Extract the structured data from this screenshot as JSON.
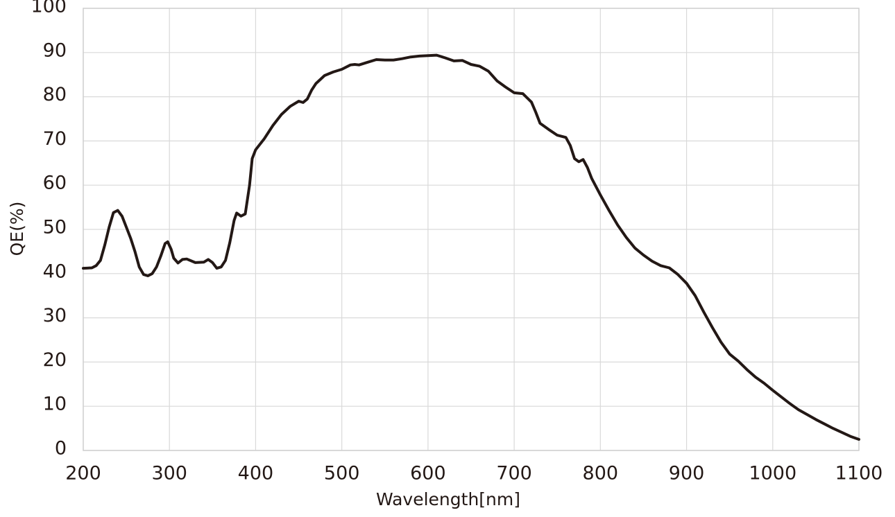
{
  "chart_data": {
    "type": "line",
    "xlabel": "Wavelength[nm]",
    "ylabel": "QE(%)",
    "x": [
      200,
      210,
      215,
      220,
      225,
      230,
      235,
      240,
      245,
      250,
      255,
      260,
      265,
      270,
      275,
      280,
      285,
      290,
      295,
      298,
      302,
      305,
      310,
      315,
      320,
      330,
      340,
      345,
      350,
      355,
      360,
      365,
      370,
      375,
      378,
      383,
      388,
      393,
      396,
      400,
      410,
      420,
      430,
      440,
      450,
      455,
      460,
      465,
      470,
      480,
      490,
      500,
      510,
      515,
      520,
      530,
      540,
      550,
      560,
      570,
      580,
      590,
      600,
      610,
      620,
      630,
      640,
      650,
      660,
      670,
      680,
      690,
      700,
      710,
      720,
      725,
      730,
      740,
      750,
      760,
      765,
      770,
      775,
      780,
      785,
      790,
      800,
      810,
      820,
      830,
      840,
      850,
      860,
      870,
      880,
      890,
      900,
      910,
      920,
      930,
      940,
      950,
      960,
      970,
      980,
      990,
      1000,
      1010,
      1020,
      1030,
      1040,
      1050,
      1060,
      1070,
      1080,
      1090,
      1100
    ],
    "values": [
      41.2,
      41.3,
      41.8,
      43,
      46.5,
      50.5,
      53.8,
      54.3,
      53,
      50.5,
      48,
      45,
      41.5,
      39.8,
      39.5,
      40,
      41.5,
      44,
      46.8,
      47.2,
      45.5,
      43.5,
      42.4,
      43.2,
      43.3,
      42.5,
      42.6,
      43.2,
      42.5,
      41.2,
      41.5,
      43,
      47,
      52,
      53.7,
      53,
      53.5,
      60,
      66,
      68,
      70.5,
      73.5,
      76,
      77.8,
      79,
      78.7,
      79.5,
      81.5,
      83,
      84.8,
      85.6,
      86.2,
      87.2,
      87.3,
      87.2,
      87.8,
      88.4,
      88.3,
      88.3,
      88.6,
      89,
      89.2,
      89.3,
      89.4,
      88.8,
      88.1,
      88.2,
      87.3,
      86.9,
      85.8,
      83.6,
      82.2,
      80.9,
      80.7,
      78.8,
      76.5,
      74,
      72.6,
      71.3,
      70.8,
      69,
      66,
      65.3,
      65.8,
      64,
      61.5,
      57.8,
      54.3,
      51,
      48.2,
      45.8,
      44.2,
      42.8,
      41.8,
      41.3,
      39.8,
      37.8,
      35,
      31.3,
      27.8,
      24.5,
      21.8,
      20.2,
      18.3,
      16.6,
      15.2,
      13.6,
      12.1,
      10.6,
      9.2,
      8.1,
      7,
      6,
      5,
      4.1,
      3.2,
      2.5
    ],
    "color": "#231815",
    "xlim": [
      200,
      1100
    ],
    "xticks": [
      200,
      300,
      400,
      500,
      600,
      700,
      800,
      900,
      1000,
      1100
    ],
    "ylim": [
      0,
      100
    ],
    "yticks": [
      0,
      10,
      20,
      30,
      40,
      50,
      60,
      70,
      80,
      90,
      100
    ],
    "grid": true
  }
}
